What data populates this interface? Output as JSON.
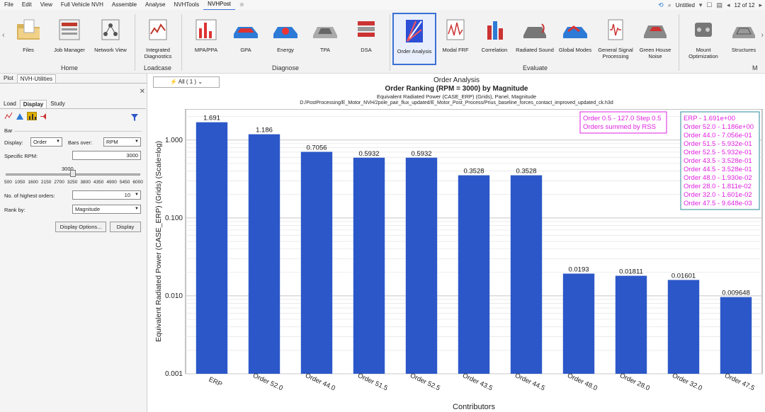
{
  "menubar": {
    "items": [
      "File",
      "Edit",
      "View",
      "Full Vehicle NVH",
      "Assemble",
      "Analyse",
      "NVHTools",
      "NVHPost"
    ],
    "active": "NVHPost",
    "untitled": "Untitled",
    "page": "12 of 12"
  },
  "ribbon": {
    "groups": {
      "home": "Home",
      "loadcase": "Loadcase",
      "diagnose": "Diagnose",
      "evaluate": "Evaluate",
      "m": "M"
    },
    "buttons": {
      "files": "Files",
      "job_manager": "Job Manager",
      "network_view": "Network View",
      "integrated_diagnostics": "Integrated Diagnostics",
      "mpa_ppa": "MPA/PPA",
      "gpa": "GPA",
      "energy": "Energy",
      "tpa": "TPA",
      "dsa": "DSA",
      "order_analysis": "Order Analysis",
      "modal_frf": "Modal FRF",
      "correlation": "Correlation",
      "radiated_sound": "Radiated Sound",
      "global_modes": "Global Modes",
      "general_signal_processing": "General Signal Processing",
      "green_house_noise": "Green House Noise",
      "mount_optimization": "Mount Optimization",
      "structures": "Structures"
    }
  },
  "panel": {
    "tabs": [
      "Plot",
      "NVH-Utilities"
    ],
    "subtabs": [
      "Load",
      "Display",
      "Study"
    ],
    "active_subtab": "Display",
    "section": "Bar",
    "display_label": "Display:",
    "display_value": "Order",
    "bars_over_label": "Bars over:",
    "bars_over_value": "RPM",
    "specific_rpm_label": "Specific RPM:",
    "specific_rpm_value": "3000",
    "slider_value": "3000",
    "slider_value_fraction": 0.5,
    "slider_ticks": [
      "500",
      "1050",
      "1600",
      "2150",
      "2700",
      "3250",
      "3800",
      "4350",
      "4900",
      "5450",
      "6000"
    ],
    "highest_orders_label": "No. of highest orders:",
    "highest_orders_value": "10",
    "rank_by_label": "Rank by:",
    "rank_by_value": "Magnitude",
    "display_options_btn": "Display Options...",
    "display_btn": "Display"
  },
  "all_control": "All ( 1 )",
  "chart_header": {
    "section_title": "Order Analysis",
    "title": "Order Ranking (RPM = 3000) by Magnitude",
    "subtitle": "Equivalent Radiated Power (CASE_ERP) (Grids), Panel, Magnitude",
    "path": "D:/PostProcessing/E_Motor_NVH/2pole_pair_flux_updated/E_Motor_Post_Process/Prius_baseline_forces_contact_improved_updated_ck.h3d"
  },
  "chart_data": {
    "type": "bar",
    "title": "Order Ranking (RPM = 3000) by Magnitude",
    "xlabel": "Contributors",
    "ylabel": "Equivalent Radiated Power (CASE_ERP) (Grids) (Scale=log)",
    "yscale": "log",
    "ylim": [
      0.001,
      2.5
    ],
    "yticks": [
      "0.001",
      "0.010",
      "0.100",
      "1.000"
    ],
    "categories": [
      "ERP",
      "Order 52.0",
      "Order 44.0",
      "Order 51.5",
      "Order 52.5",
      "Order 43.5",
      "Order 44.5",
      "Order 48.0",
      "Order 28.0",
      "Order 32.0",
      "Order 47.5"
    ],
    "values": [
      1.691,
      1.186,
      0.7056,
      0.5932,
      0.5932,
      0.3528,
      0.3528,
      0.0193,
      0.01811,
      0.01601,
      0.009648
    ],
    "value_labels": [
      "1.691",
      "1.186",
      "0.7056",
      "0.5932",
      "0.5932",
      "0.3528",
      "0.3528",
      "0.0193",
      "0.01811",
      "0.01601",
      "0.009648"
    ],
    "bar_color": "#2c57c9",
    "annotation_left": [
      "Order 0.5 - 127.0 Step 0.5",
      "Orders summed by RSS"
    ],
    "annotation_right": [
      "ERP - 1.691e+00",
      "Order 52.0 - 1.186e+00",
      "Order 44.0 - 7.056e-01",
      "Order 51.5 - 5.932e-01",
      "Order 52.5 - 5.932e-01",
      "Order 43.5 - 3.528e-01",
      "Order 44.5 - 3.528e-01",
      "Order 48.0 - 1.930e-02",
      "Order 28.0 - 1.811e-02",
      "Order 32.0 - 1.601e-02",
      "Order 47.5 - 9.648e-03"
    ],
    "annotation_color": "#e020e0",
    "grid": true
  }
}
